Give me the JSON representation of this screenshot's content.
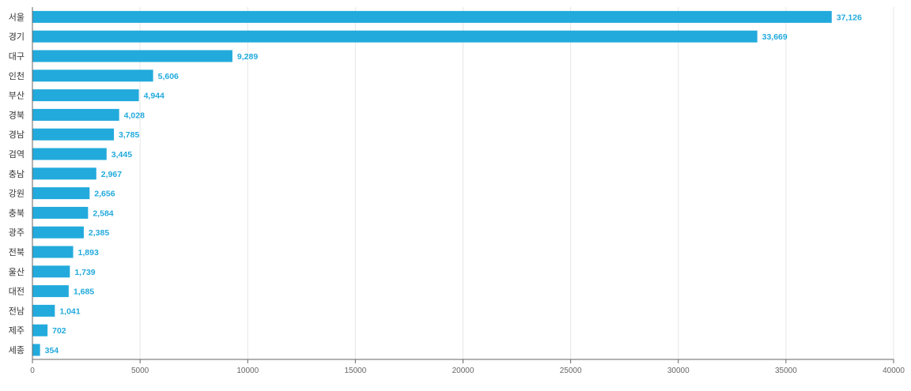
{
  "chart_data": {
    "type": "bar",
    "orientation": "horizontal",
    "categories": [
      "서울",
      "경기",
      "대구",
      "인천",
      "부산",
      "경북",
      "경남",
      "검역",
      "충남",
      "강원",
      "충북",
      "광주",
      "전북",
      "울산",
      "대전",
      "전남",
      "제주",
      "세종"
    ],
    "values": [
      37126,
      33669,
      9289,
      5606,
      4944,
      4028,
      3785,
      3445,
      2967,
      2656,
      2584,
      2385,
      1893,
      1739,
      1685,
      1041,
      702,
      354
    ],
    "value_labels": [
      "37,126",
      "33,669",
      "9,289",
      "5,606",
      "4,944",
      "4,028",
      "3,785",
      "3,445",
      "2,967",
      "2,656",
      "2,584",
      "2,385",
      "1,893",
      "1,739",
      "1,685",
      "1,041",
      "702",
      "354"
    ],
    "x_ticks": [
      0,
      5000,
      10000,
      15000,
      20000,
      25000,
      30000,
      35000,
      40000
    ],
    "xlim": [
      0,
      40000
    ],
    "grid": true,
    "colors": {
      "bar": "#22aadc",
      "value_label": "#22aadc"
    }
  }
}
